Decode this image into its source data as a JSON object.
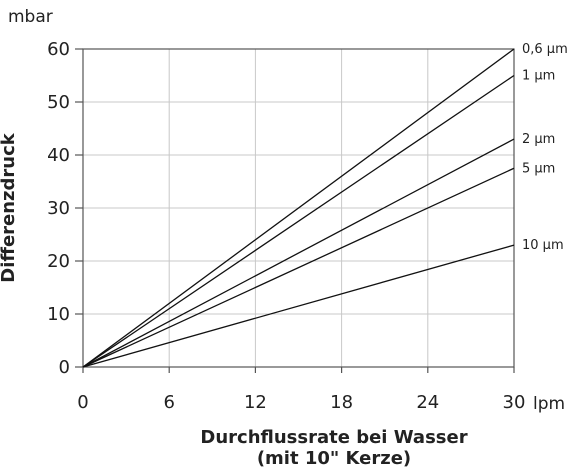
{
  "chart_data": {
    "type": "line",
    "ylabel": "Differenzdruck",
    "y_unit": "mbar",
    "x_unit": "lpm",
    "xlabel_line1": "Durchflussrate bei Wasser",
    "xlabel_line2": "(mit 10\" Kerze)",
    "xlim": [
      0,
      30
    ],
    "ylim": [
      0,
      60
    ],
    "x_ticks": [
      0,
      6,
      12,
      18,
      24,
      30
    ],
    "y_ticks": [
      0,
      10,
      20,
      30,
      40,
      50,
      60
    ],
    "grid": true,
    "series": [
      {
        "name": "0,6 µm",
        "x": [
          0,
          30
        ],
        "y": [
          0,
          60
        ]
      },
      {
        "name": "1 µm",
        "x": [
          0,
          30
        ],
        "y": [
          0,
          55
        ]
      },
      {
        "name": "2 µm",
        "x": [
          0,
          30
        ],
        "y": [
          0,
          43
        ]
      },
      {
        "name": "5 µm",
        "x": [
          0,
          30
        ],
        "y": [
          0,
          37.5
        ]
      },
      {
        "name": "10 µm",
        "x": [
          0,
          30
        ],
        "y": [
          0,
          23
        ]
      }
    ]
  }
}
